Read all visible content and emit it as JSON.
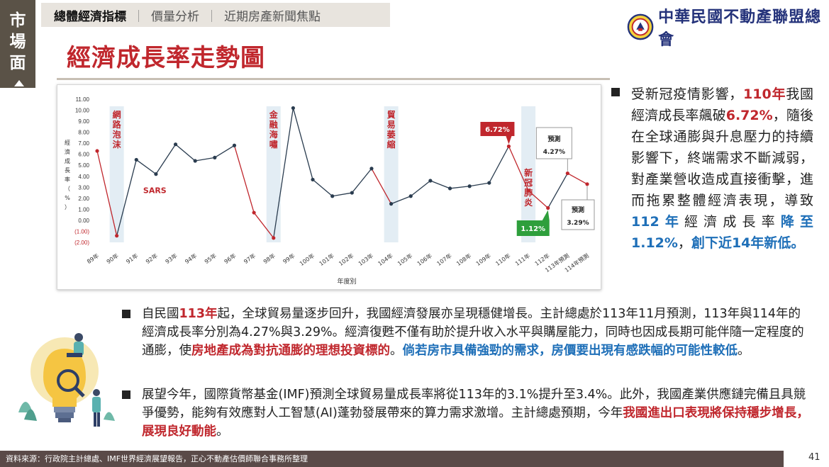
{
  "side_tab": {
    "chars": [
      "市",
      "場",
      "面"
    ]
  },
  "nav": {
    "items": [
      "總體經濟指標",
      "價量分析",
      "近期房產新聞焦點"
    ],
    "active_index": 0
  },
  "logo": {
    "text": "中華民國不動產聯盟總會"
  },
  "title": "經濟成長率走勢圖",
  "chart_data": {
    "type": "line",
    "x": [
      "89年",
      "90年",
      "91年",
      "92年",
      "93年",
      "94年",
      "95年",
      "96年",
      "97年",
      "98年",
      "99年",
      "100年",
      "101年",
      "102年",
      "103年",
      "104年",
      "105年",
      "106年",
      "107年",
      "108年",
      "109年",
      "110年",
      "111年",
      "112年",
      "113年預測",
      "114年預測"
    ],
    "values": [
      6.3,
      -1.4,
      5.5,
      4.2,
      6.9,
      5.4,
      5.7,
      6.8,
      0.7,
      -1.6,
      10.2,
      3.7,
      2.2,
      2.5,
      4.7,
      1.5,
      2.2,
      3.6,
      2.9,
      3.1,
      3.4,
      6.72,
      2.7,
      1.12,
      4.27,
      3.29
    ],
    "red_segments": [
      [
        0,
        1
      ],
      [
        7,
        8
      ],
      [
        8,
        9
      ],
      [
        14,
        15
      ],
      [
        21,
        22
      ],
      [
        22,
        23
      ],
      [
        24,
        25
      ]
    ],
    "ylim": [
      -2,
      11
    ],
    "yticks": [
      "11.00",
      "10.00",
      "9.00",
      "8.00",
      "7.00",
      "6.00",
      "5.00",
      "4.00",
      "3.00",
      "2.00",
      "1.00",
      "0.00",
      "(1.00)",
      "(2.00)"
    ],
    "ylabel": [
      "經",
      "濟",
      "成",
      "長",
      "率",
      "（",
      "%",
      "）"
    ],
    "xlabel": "年度別",
    "events": [
      {
        "label": [
          "網",
          "路",
          "泡",
          "沫"
        ],
        "index": 1
      },
      {
        "label": [
          "金",
          "融",
          "海",
          "嘯"
        ],
        "index": 9
      },
      {
        "label": [
          "貿",
          "易",
          "萎",
          "縮"
        ],
        "index": 15
      },
      {
        "label": [
          "新",
          "冠",
          "肺",
          "炎"
        ],
        "index": 22
      }
    ],
    "annotations": {
      "sars": "SARS",
      "peak": "6.72%",
      "low": "1.12%",
      "forecast1_title": "預測",
      "forecast1_value": "4.27%",
      "forecast2_title": "預測",
      "forecast2_value": "3.29%"
    },
    "colors": {
      "normal": "#2a3c4f",
      "shock": "#c0272d",
      "band": "#e3edf4"
    },
    "grid": false
  },
  "side_bullet": {
    "parts": [
      {
        "t": "受新冠疫情影響，",
        "c": ""
      },
      {
        "t": "110年",
        "c": "red"
      },
      {
        "t": "我國經濟成長率飆破",
        "c": ""
      },
      {
        "t": "6.72%",
        "c": "red"
      },
      {
        "t": "，隨後在全球通膨與升息壓力的持續影響下，終端需求不斷減弱，對產業營收造成直接衝擊，進而拖累整體經濟表現，導致",
        "c": ""
      },
      {
        "t": "112年",
        "c": "blue"
      },
      {
        "t": "經濟成長率",
        "c": ""
      },
      {
        "t": "降至1.12%",
        "c": "blue"
      },
      {
        "t": "，",
        "c": ""
      },
      {
        "t": "創下近14年新低。",
        "c": "blue"
      }
    ]
  },
  "paragraph1": {
    "parts": [
      {
        "t": "自民國",
        "c": ""
      },
      {
        "t": "113年",
        "c": "red"
      },
      {
        "t": "起，全球貿易量逐步回升，我國經濟發展亦呈現穩健增長。主計總處於113年11月預測，113年與114年的經濟成長率分別為4.27%與3.29%。經濟復甦不僅有助於提升收入水平與購屋能力，同時也因成長期可能伴隨一定程度的通膨，使",
        "c": ""
      },
      {
        "t": "房地產成為對抗通膨的理想投資標的",
        "c": "red"
      },
      {
        "t": "。",
        "c": ""
      },
      {
        "t": "倘若房市具備強勁的需求，房價要出現有感跌幅的可能性較低",
        "c": "blue"
      },
      {
        "t": "。",
        "c": ""
      }
    ]
  },
  "paragraph2": {
    "parts": [
      {
        "t": "展望今年，國際貨幣基金(IMF)預測全球貿易量成長率將從113年的3.1%提升至3.4%。此外，我國產業供應鏈完備且具競爭優勢，能夠有效應對人工智慧(AI)蓬勃發展帶來的算力需求激增。主計總處預期，今年",
        "c": ""
      },
      {
        "t": "我國進出口表現將保持穩步增長，展現良好動能",
        "c": "red"
      },
      {
        "t": "。",
        "c": ""
      }
    ]
  },
  "footer": {
    "source": "資料來源：行政院主計總處、IMF世界經濟展望報告，正心不動產估價師聯合事務所整理"
  },
  "page_number": "41"
}
